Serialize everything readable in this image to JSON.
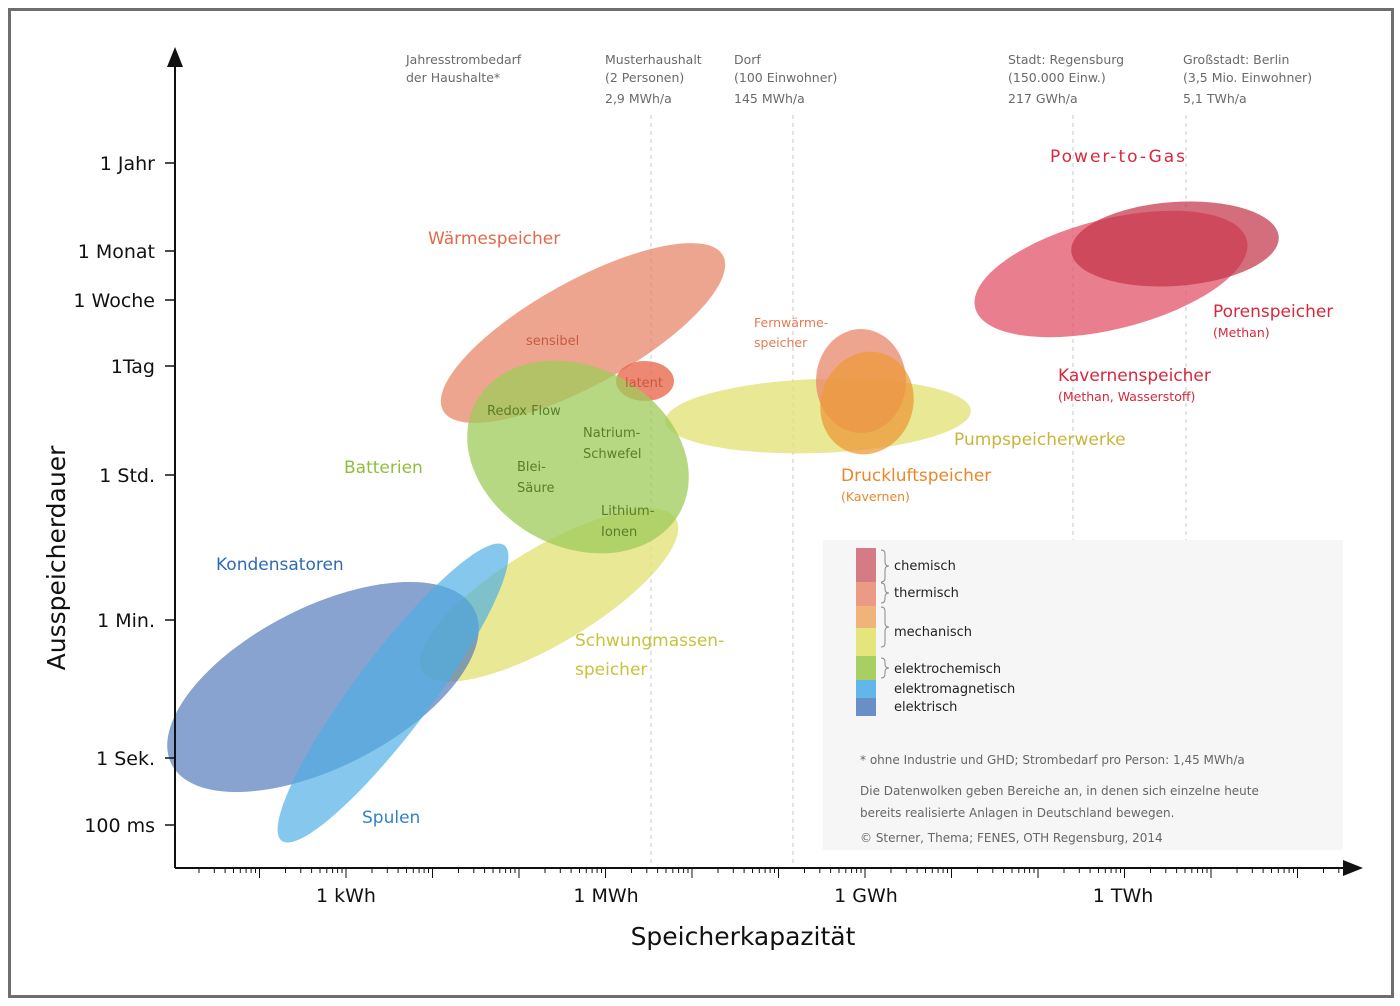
{
  "axes": {
    "y_title": "Ausspeicherdauer",
    "x_title": "Speicherkapazität",
    "y_ticks": [
      "1 Jahr",
      "1 Monat",
      "1 Woche",
      "1Tag",
      "1 Std.",
      "1 Min.",
      "1 Sek.",
      "100 ms"
    ],
    "x_ticks": [
      "1 kWh",
      "1 MWh",
      "1 GWh",
      "1 TWh"
    ]
  },
  "references": [
    {
      "lines": [
        "Jahresstrombedarf",
        "der Haushalte*"
      ]
    },
    {
      "lines": [
        "Musterhaushalt",
        "(2 Personen)",
        "2,9 MWh/a"
      ]
    },
    {
      "lines": [
        "Dorf",
        "(100 Einwohner)",
        "145 MWh/a"
      ]
    },
    {
      "lines": [
        "Stadt: Regensburg",
        "(150.000 Einw.)",
        "217 GWh/a"
      ]
    },
    {
      "lines": [
        "Großstadt: Berlin",
        "(3,5 Mio. Einwohner)",
        "5,1 TWh/a"
      ]
    }
  ],
  "categories": {
    "waermespeicher": "Wärmespeicher",
    "sensibel": "sensibel",
    "latent": "latent",
    "fernwaerme": [
      "Fernwärme-",
      "speicher"
    ],
    "batterien": "Batterien",
    "redox": "Redox Flow",
    "natrium": [
      "Natrium-",
      "Schwefel"
    ],
    "blei": [
      "Blei-",
      "Säure"
    ],
    "lithium": [
      "Lithium-",
      "Ionen"
    ],
    "kondensatoren": "Kondensatoren",
    "spulen": "Spulen",
    "schwungmassen": [
      "Schwungmassen-",
      "speicher"
    ],
    "pumpspeicher": "Pumpspeicherwerke",
    "druckluft": "Druckluftspeicher",
    "druckluft_sub": "(Kavernen)",
    "power_to_gas": "Power-to-Gas",
    "porenspeicher": "Porenspeicher",
    "porenspeicher_sub": "(Methan)",
    "kavernen": "Kavernenspeicher",
    "kavernen_sub": "(Methan, Wasserstoff)"
  },
  "legend": [
    {
      "label": "chemisch",
      "color": "#d57b86"
    },
    {
      "label": "thermisch",
      "color": "#ea9a85"
    },
    {
      "label": "mechanisch",
      "color": "#e4e57a"
    },
    {
      "label": "elektrochemisch",
      "color": "#a9cf63"
    },
    {
      "label": "elektromagnetisch",
      "color": "#63b7e8"
    },
    {
      "label": "elektrisch",
      "color": "#6a8fc6"
    }
  ],
  "notes": {
    "footnote": "* ohne Industrie und GHD; Strombedarf pro Person: 1,45 MWh/a",
    "desc1": "Die Datenwolken geben Bereiche an, in denen sich einzelne heute",
    "desc2": "bereits realisierte Anlagen in Deutschland bewegen.",
    "credit": "© Sterner, Thema; FENES, OTH Regensburg, 2014"
  },
  "colors": {
    "electric": "#4f78b8",
    "electromagnetic": "#4daee5",
    "mechanical": "#e2e27a",
    "electrochemical": "#9fcb5a",
    "thermal": "#e8876b",
    "chemical": "#e04d62",
    "orange": "#ee9a3a"
  }
}
